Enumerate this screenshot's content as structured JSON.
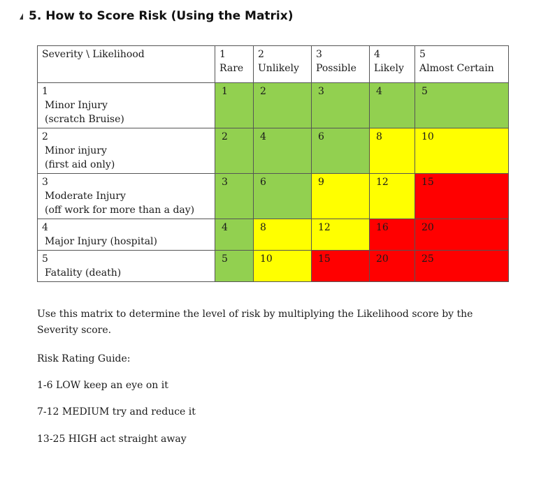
{
  "heading": {
    "number": "5.",
    "title": "How to Score Risk (Using the Matrix)"
  },
  "matrix": {
    "corner_label": "Severity \\ Likelihood",
    "columns": [
      {
        "num": "1",
        "label": "Rare"
      },
      {
        "num": "2",
        "label": "Unlikely"
      },
      {
        "num": "3",
        "label": "Possible"
      },
      {
        "num": "4",
        "label": "Likely"
      },
      {
        "num": "5",
        "label": "Almost Certain"
      }
    ],
    "rows": [
      {
        "num": "1",
        "label": "Minor Injury",
        "detail": "(scratch Bruise)",
        "values": [
          "1",
          "2",
          "3",
          "4",
          "5"
        ],
        "levels": [
          "low",
          "low",
          "low",
          "low",
          "low"
        ]
      },
      {
        "num": "2",
        "label": "Minor injury",
        "detail": "(first aid only)",
        "values": [
          "2",
          "4",
          "6",
          "8",
          "10"
        ],
        "levels": [
          "low",
          "low",
          "low",
          "medium",
          "medium"
        ]
      },
      {
        "num": "3",
        "label": "Moderate Injury",
        "detail": "(off work for more than a day)",
        "values": [
          "3",
          "6",
          "9",
          "12",
          "15"
        ],
        "levels": [
          "low",
          "low",
          "medium",
          "medium",
          "high"
        ]
      },
      {
        "num": "4",
        "label": "Major Injury (hospital)",
        "detail": "",
        "values": [
          "4",
          "8",
          "12",
          "16",
          "20"
        ],
        "levels": [
          "low",
          "medium",
          "medium",
          "high",
          "high"
        ]
      },
      {
        "num": "5",
        "label": "Fatality (death)",
        "detail": "",
        "values": [
          "5",
          "10",
          "15",
          "20",
          "25"
        ],
        "levels": [
          "low",
          "medium",
          "high",
          "high",
          "high"
        ]
      }
    ],
    "colors": {
      "low": "#92d050",
      "medium": "#ffff00",
      "high": "#ff0000"
    }
  },
  "body": {
    "intro": "Use this matrix to determine the level of risk by multiplying the Likelihood score by the Severity score.",
    "guide_title": "Risk Rating Guide:",
    "low": "1-6 LOW keep an eye on it",
    "medium": "7-12 MEDIUM try and reduce it",
    "high": "13-25 HIGH act straight away"
  }
}
